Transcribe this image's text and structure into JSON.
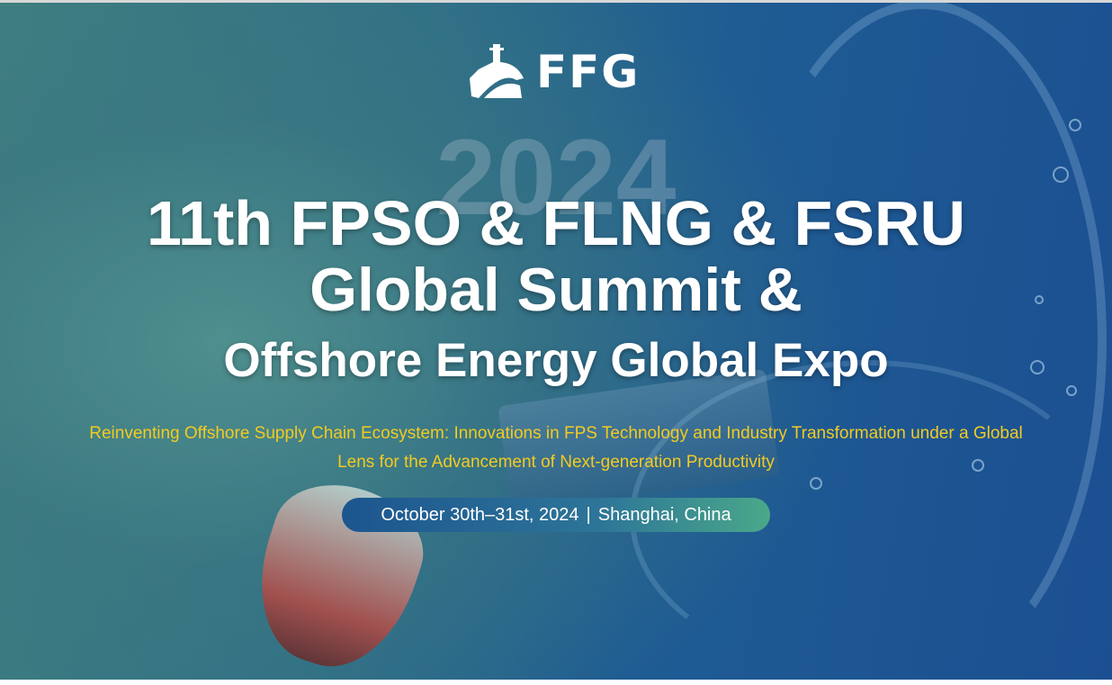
{
  "logo": {
    "text": "FFG",
    "icon": "ship-icon"
  },
  "watermark_year": "2024",
  "title": {
    "line1": "11th FPSO & FLNG & FSRU",
    "line2": "Global Summit &",
    "line3": "Offshore Energy Global Expo"
  },
  "subtitle": "Reinventing Offshore Supply Chain Ecosystem: Innovations in FPS Technology and Industry Transformation under a Global Lens for the Advancement of Next-generation Productivity",
  "event": {
    "date": "October 30th–31st, 2024",
    "separator": "|",
    "location": "Shanghai, China"
  },
  "colors": {
    "subtitle": "#f3cb1f",
    "pill_start": "#1d558f",
    "pill_end": "#4aa889"
  }
}
